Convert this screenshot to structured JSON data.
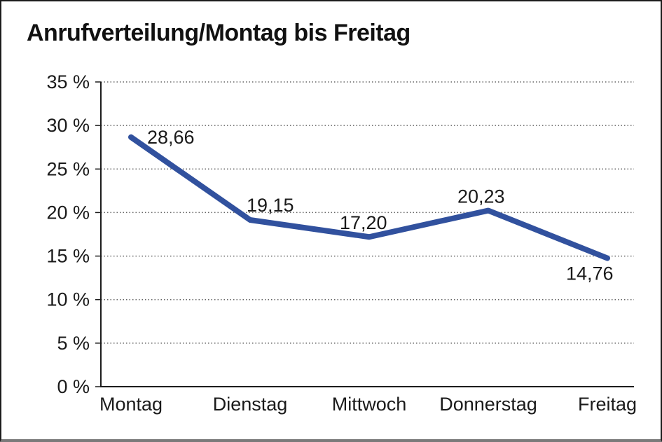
{
  "chart_data": {
    "type": "line",
    "title": "Anrufverteilung/Montag bis Freitag",
    "categories": [
      "Montag",
      "Dienstag",
      "Mittwoch",
      "Donnerstag",
      "Freitag"
    ],
    "values": [
      28.66,
      19.15,
      17.2,
      20.23,
      14.76
    ],
    "value_labels": [
      "28,66",
      "19,15",
      "17,20",
      "20,23",
      "14,76"
    ],
    "y_tick_labels": [
      "0 %",
      "5 %",
      "10 %",
      "15 %",
      "20 %",
      "25 %",
      "30 %",
      "35 %"
    ],
    "ylim": [
      0,
      35
    ],
    "y_tick_step": 5,
    "xlabel": "",
    "ylabel": "",
    "grid": "horizontal-dotted",
    "legend": "none",
    "line_color": "#31519E",
    "axis_color": "#1c1c1c",
    "grid_color": "#666666",
    "text_color": "#1a1a1a"
  }
}
